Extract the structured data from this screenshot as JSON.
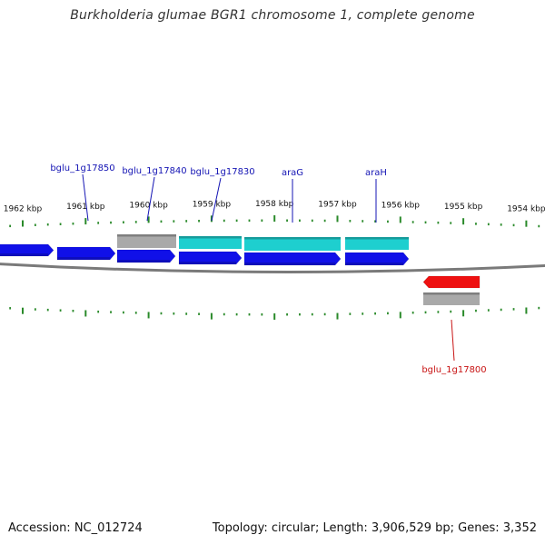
{
  "title": "Burkholderia glumae BGR1 chromosome 1, complete genome",
  "footer": {
    "accession": "Accession: NC_012724",
    "summary": "Topology: circular; Length: 3,906,529 bp; Genes: 3,352"
  },
  "colors": {
    "forward_gene": "#1010e8",
    "forward_gene_alt": "#1ecfcf",
    "reverse_gene": "#ee1111",
    "pseudo_gene": "#a9a9a9",
    "backbone": "#7a7a7a",
    "ticks": "#2a8a2a",
    "label_blue": "#1414b4",
    "label_red": "#c81414"
  },
  "axis": {
    "unit": "kbp",
    "major_ticks": [
      {
        "label": "1962 kbp"
      },
      {
        "label": "1961 kbp"
      },
      {
        "label": "1960 kbp"
      },
      {
        "label": "1959 kbp"
      },
      {
        "label": "1958 kbp"
      },
      {
        "label": "1957 kbp"
      },
      {
        "label": "1956 kbp"
      },
      {
        "label": "1955 kbp"
      },
      {
        "label": "1954 kbp"
      }
    ]
  },
  "gene_labels": [
    {
      "name": "bglu_1g17850",
      "strand": "forward"
    },
    {
      "name": "bglu_1g17840",
      "strand": "forward"
    },
    {
      "name": "bglu_1g17830",
      "strand": "forward"
    },
    {
      "name": "araG",
      "strand": "forward"
    },
    {
      "name": "araH",
      "strand": "forward"
    },
    {
      "name": "bglu_1g17800",
      "strand": "reverse"
    }
  ]
}
